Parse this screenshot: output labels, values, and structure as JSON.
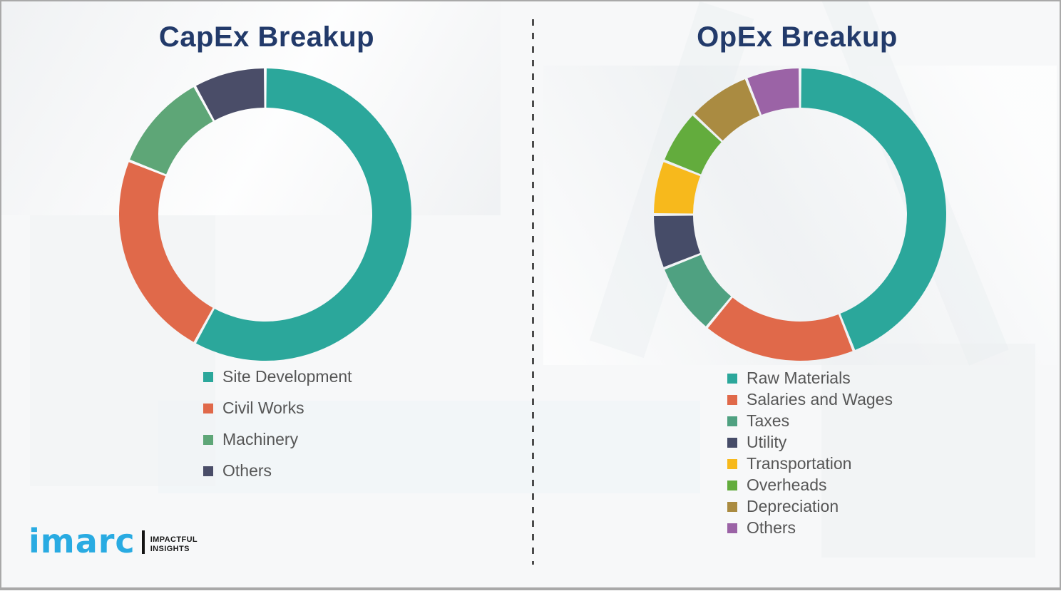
{
  "page": {
    "background_color": "#f7f8f9",
    "frame_border_color": "#a9a9a9",
    "divider_color": "#4c4c4c",
    "title_color": "#223a6a",
    "legend_text_color": "#565656"
  },
  "logo": {
    "brand": "imarc",
    "brand_color": "#29abe2",
    "tagline_line1": "IMPACTFUL",
    "tagline_line2": "INSIGHTS"
  },
  "chart_data": [
    {
      "type": "pie",
      "subtype": "donut",
      "title": "CapEx Breakup",
      "labels": [
        "Site Development",
        "Civil Works",
        "Machinery",
        "Others"
      ],
      "values": [
        58,
        23,
        11,
        8
      ],
      "colors": [
        "#2ba79b",
        "#e0694a",
        "#5ea677",
        "#4a4d68"
      ],
      "start_angle_deg": 0,
      "direction": "clockwise",
      "legend_position": "below-left",
      "grid": false
    },
    {
      "type": "pie",
      "subtype": "donut",
      "title": "OpEx Breakup",
      "labels": [
        "Raw Materials",
        "Salaries and Wages",
        "Taxes",
        "Utility",
        "Transportation",
        "Overheads",
        "Depreciation",
        "Others"
      ],
      "values": [
        44,
        17,
        8,
        6,
        6,
        6,
        7,
        6
      ],
      "colors": [
        "#2ba79b",
        "#e0694a",
        "#4fa181",
        "#464c68",
        "#f7b91c",
        "#63ac3d",
        "#aa8b41",
        "#9b63a6"
      ],
      "start_angle_deg": 0,
      "direction": "clockwise",
      "legend_position": "below-left",
      "grid": false
    }
  ]
}
